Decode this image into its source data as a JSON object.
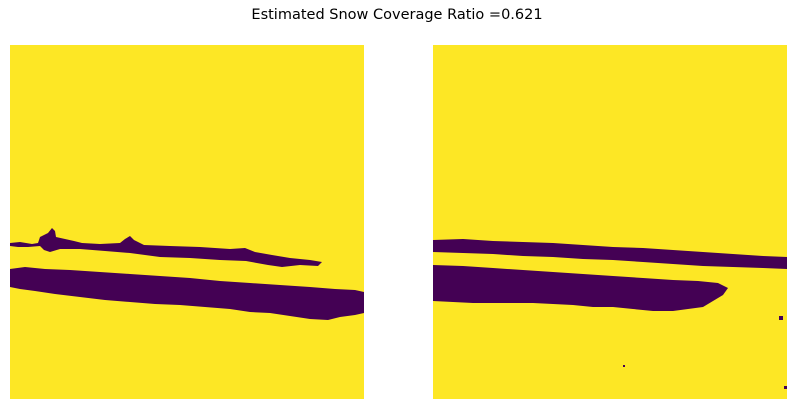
{
  "figure": {
    "title": "Estimated Snow Coverage Ratio =0.621"
  },
  "colors": {
    "snow": "#fde725",
    "no_snow": "#440154",
    "background": "#ffffff"
  },
  "panels": [
    {
      "role": "snow-mask-left"
    },
    {
      "role": "snow-mask-right"
    }
  ]
}
